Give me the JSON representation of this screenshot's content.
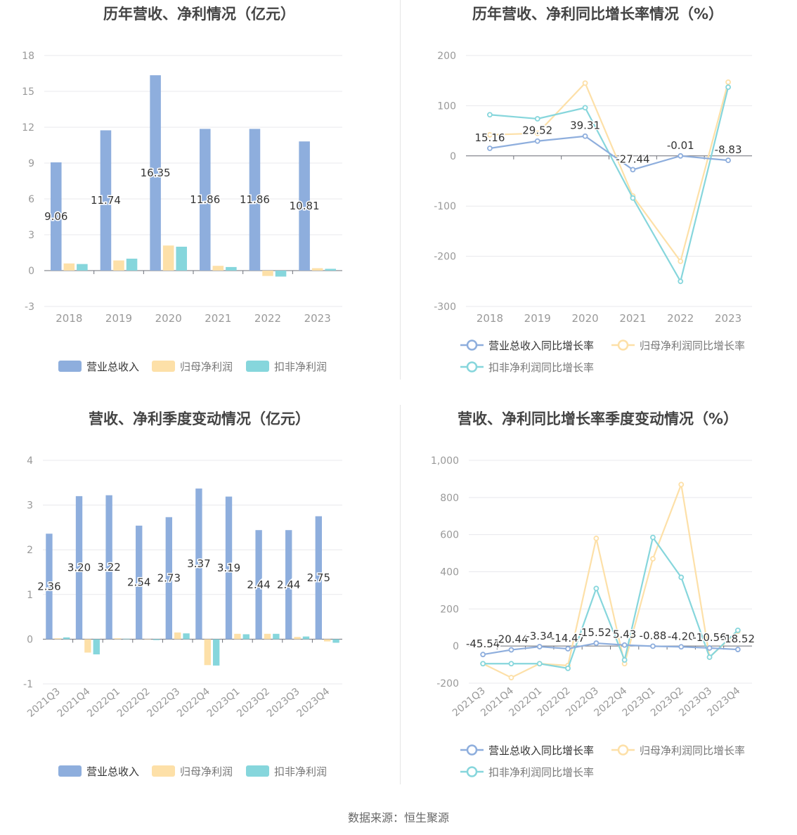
{
  "footer": {
    "source": "数据来源：恒生聚源"
  },
  "colors": {
    "revenue": "#8eaedd",
    "netprofit": "#fde0a8",
    "deducted": "#86d6dc",
    "axis": "#999999",
    "grid": "#e8e8ec",
    "label": "#333333"
  },
  "chart_data": [
    {
      "type": "bar",
      "title": "历年营收、净利情况（亿元）",
      "categories": [
        "2018",
        "2019",
        "2020",
        "2021",
        "2022",
        "2023"
      ],
      "ylim": [
        -3,
        18
      ],
      "yticks": [
        -3,
        0,
        3,
        6,
        9,
        12,
        15,
        18
      ],
      "series": [
        {
          "name": "营业总收入",
          "values": [
            9.06,
            11.74,
            16.35,
            11.86,
            11.86,
            10.81
          ],
          "labels": [
            "9.06",
            "11.74",
            "16.35",
            "11.86",
            "11.86",
            "10.81"
          ]
        },
        {
          "name": "归母净利润",
          "values": [
            0.6,
            0.85,
            2.1,
            0.4,
            -0.45,
            0.2
          ]
        },
        {
          "name": "扣非净利润",
          "values": [
            0.55,
            1.0,
            2.0,
            0.3,
            -0.5,
            0.15
          ]
        }
      ],
      "legend": "bottom"
    },
    {
      "type": "line",
      "title": "历年营收、净利同比增长率情况（%）",
      "categories": [
        "2018",
        "2019",
        "2020",
        "2021",
        "2022",
        "2023"
      ],
      "ylim": [
        -300,
        200
      ],
      "yticks": [
        -300,
        -200,
        -100,
        0,
        100,
        200
      ],
      "series": [
        {
          "name": "营业总收入同比增长率",
          "values": [
            15.16,
            29.52,
            39.31,
            -27.44,
            -0.01,
            -8.83
          ],
          "labels": [
            "15.16",
            "29.52",
            "39.31",
            "-27.44",
            "-0.01",
            "-8.83"
          ]
        },
        {
          "name": "归母净利润同比增长率",
          "values": [
            42,
            45,
            145,
            -80,
            -210,
            147
          ]
        },
        {
          "name": "扣非净利润同比增长率",
          "values": [
            82,
            74,
            96,
            -84,
            -250,
            137
          ]
        }
      ],
      "legend": "bottom"
    },
    {
      "type": "bar",
      "title": "营收、净利季度变动情况（亿元）",
      "categories": [
        "2021Q3",
        "2021Q4",
        "2022Q1",
        "2022Q2",
        "2022Q3",
        "2022Q4",
        "2023Q1",
        "2023Q2",
        "2023Q3",
        "2023Q4"
      ],
      "ylim": [
        -1,
        4
      ],
      "yticks": [
        -1,
        0,
        1,
        2,
        3,
        4
      ],
      "series": [
        {
          "name": "营业总收入",
          "values": [
            2.36,
            3.2,
            3.22,
            2.54,
            2.73,
            3.37,
            3.19,
            2.44,
            2.44,
            2.75
          ],
          "labels": [
            "2.36",
            "3.20",
            "3.22",
            "2.54",
            "2.73",
            "3.37",
            "3.19",
            "2.44",
            "2.44",
            "2.75"
          ]
        },
        {
          "name": "归母净利润",
          "values": [
            0.02,
            -0.3,
            0.02,
            0.0,
            0.15,
            -0.58,
            0.12,
            0.12,
            0.05,
            -0.05
          ]
        },
        {
          "name": "扣非净利润",
          "values": [
            0.04,
            -0.34,
            0.01,
            -0.02,
            0.13,
            -0.59,
            0.11,
            0.12,
            0.06,
            -0.08
          ]
        }
      ],
      "legend": "bottom"
    },
    {
      "type": "line",
      "title": "营收、净利同比增长率季度变动情况（%）",
      "categories": [
        "2021Q3",
        "2021Q4",
        "2022Q1",
        "2022Q2",
        "2022Q3",
        "2022Q4",
        "2023Q1",
        "2023Q2",
        "2023Q3",
        "2023Q4"
      ],
      "ylim": [
        -200,
        1000
      ],
      "yticks": [
        -200,
        0,
        200,
        400,
        600,
        800,
        1000
      ],
      "ytick_labels": [
        "-200",
        "0",
        "200",
        "400",
        "600",
        "800",
        "1,000"
      ],
      "series": [
        {
          "name": "营业总收入同比增长率",
          "values": [
            -45.54,
            -20.44,
            -3.34,
            -14.47,
            15.52,
            5.43,
            -0.88,
            -4.2,
            -10.56,
            -18.52
          ],
          "labels": [
            "-45.54",
            "-20.44",
            "-3.34",
            "-14.47",
            "15.52",
            "5.43",
            "-0.88",
            "-4.20",
            "-10.56",
            "-18.52"
          ]
        },
        {
          "name": "归母净利润同比增长率",
          "values": [
            -95,
            -170,
            -95,
            -105,
            580,
            -95,
            470,
            870,
            -60,
            80
          ]
        },
        {
          "name": "扣非净利润同比增长率",
          "values": [
            -95,
            -95,
            -95,
            -120,
            310,
            -75,
            585,
            370,
            -60,
            85
          ]
        }
      ],
      "legend": "bottom"
    }
  ]
}
